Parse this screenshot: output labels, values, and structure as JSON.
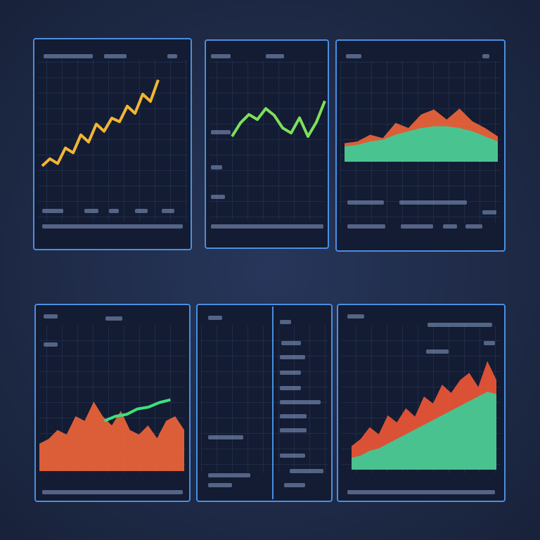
{
  "panels": [
    {
      "chart_data": {
        "type": "line",
        "ylim": [
          0,
          100
        ],
        "series": [
          {
            "color": "#f2b632",
            "values": [
              20,
              26,
              22,
              35,
              31,
              46,
              40,
              55,
              49,
              60,
              57,
              70,
              64,
              80,
              74,
              92
            ]
          }
        ]
      }
    },
    {
      "chart_data": {
        "type": "line",
        "ylim": [
          0,
          100
        ],
        "series": [
          {
            "color": "#7ee05a",
            "values": [
              30,
              46,
              56,
              50,
              63,
              55,
              40,
              34,
              52,
              30,
              47,
              72
            ]
          }
        ]
      }
    },
    {
      "chart_data": {
        "type": "area",
        "ylim": [
          0,
          100
        ],
        "series": [
          {
            "color": "#ff6a3a",
            "values": [
              22,
              24,
              32,
              28,
              46,
              40,
              56,
              62,
              50,
              63,
              48,
              40,
              30
            ]
          },
          {
            "color": "#2fd6a0",
            "values": [
              18,
              20,
              24,
              26,
              32,
              36,
              40,
              42,
              42,
              40,
              36,
              30,
              24
            ]
          }
        ]
      }
    },
    {
      "chart_data": {
        "type": "area",
        "ylim": [
          0,
          100
        ],
        "series": [
          {
            "color": "#ff6a3a",
            "values": [
              30,
              35,
              45,
              40,
              60,
              55,
              76,
              60,
              50,
              66,
              45,
              40,
              50,
              36,
              55,
              60,
              45
            ]
          },
          {
            "type": "line",
            "color": "#3ee07a",
            "values": [
              55,
              60,
              62,
              68,
              70,
              75,
              78
            ]
          }
        ]
      }
    },
    {},
    {
      "chart_data": {
        "type": "area",
        "ylim": [
          0,
          100
        ],
        "series": [
          {
            "color": "#ff5a36",
            "values": [
              20,
              26,
              36,
              30,
              46,
              40,
              52,
              45,
              62,
              56,
              72,
              65,
              76,
              82,
              70,
              92,
              76
            ]
          },
          {
            "color": "#2fd6a0",
            "values": [
              10,
              12,
              16,
              18,
              22,
              26,
              30,
              34,
              38,
              42,
              46,
              50,
              54,
              58,
              62,
              66,
              64
            ]
          }
        ]
      }
    }
  ]
}
